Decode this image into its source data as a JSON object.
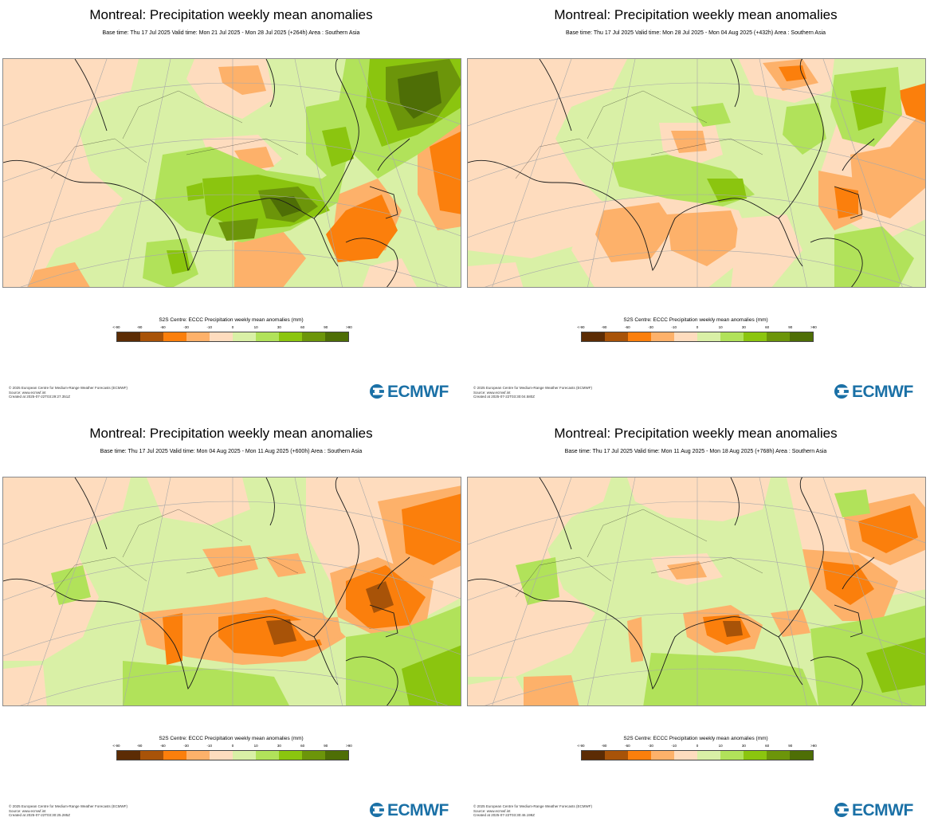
{
  "colors": {
    "lt-90": "#5c2c04",
    "m90": "#a85308",
    "m60": "#fb7f0c",
    "m30": "#fdb16a",
    "m10": "#fedcbe",
    "p0": "#d9f0a6",
    "p10": "#b1e25a",
    "p30": "#8bc50f",
    "p60": "#6c950a",
    "p90": "#4e6e06",
    "grid": "#a9a9a9",
    "coast": "#1a1a1a",
    "logo": "#1a70a6"
  },
  "colorbar": {
    "title": "S2S Centre: ECCC Precipitation weekly mean anomalies (mm)",
    "ticks": [
      "<-90",
      "-90",
      "-60",
      "-30",
      "-10",
      "0",
      "10",
      "30",
      "60",
      "90",
      ">90"
    ]
  },
  "logo": {
    "text": "ECMWF",
    "icon": "ecmwf-logo-icon"
  },
  "panels": [
    {
      "title": "Montreal: Precipitation weekly mean anomalies",
      "subtitle": "Base time: Thu 17 Jul 2025 Valid time: Mon 21 Jul 2025 - Mon 28 Jul 2025 (+264h) Area : Southern Asia",
      "footer": [
        "© 2025 European Centre for Medium-Range Weather Forecasts (ECMWF)",
        "Source: www.ecmwf.int",
        "Created at 2025-07-22T03:29:27.351Z"
      ]
    },
    {
      "title": "Montreal: Precipitation weekly mean anomalies",
      "subtitle": "Base time: Thu 17 Jul 2025 Valid time: Mon 28 Jul 2025 - Mon 04 Aug 2025 (+432h) Area : Southern Asia",
      "footer": [
        "© 2025 European Centre for Medium-Range Weather Forecasts (ECMWF)",
        "Source: www.ecmwf.int",
        "Created at 2025-07-22T03:30:04.580Z"
      ]
    },
    {
      "title": "Montreal: Precipitation weekly mean anomalies",
      "subtitle": "Base time: Thu 17 Jul 2025 Valid time: Mon 04 Aug 2025 - Mon 11 Aug 2025 (+600h) Area : Southern Asia",
      "footer": [
        "© 2025 European Centre for Medium-Range Weather Forecasts (ECMWF)",
        "Source: www.ecmwf.int",
        "Created at 2025-07-22T03:30:25.285Z"
      ]
    },
    {
      "title": "Montreal: Precipitation weekly mean anomalies",
      "subtitle": "Base time: Thu 17 Jul 2025 Valid time: Mon 11 Aug 2025 - Mon 18 Aug 2025 (+768h) Area : Southern Asia",
      "footer": [
        "© 2025 European Centre for Medium-Range Weather Forecasts (ECMWF)",
        "Source: www.ecmwf.int",
        "Created at 2025-07-22T03:30:46.199Z"
      ]
    }
  ]
}
